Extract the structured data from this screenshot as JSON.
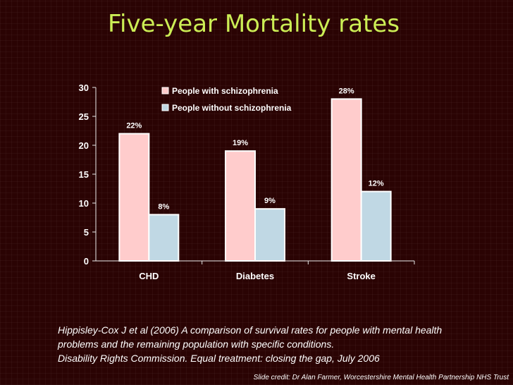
{
  "slide": {
    "title": "Five-year Mortality rates",
    "citations": [
      "Hippisley-Cox J et al (2006) A comparison of survival rates for people with mental health",
      "problems and the remaining population with specific conditions.",
      "Disability Rights Commission. Equal treatment: closing the gap, July 2006"
    ],
    "credit": "Slide credit: Dr Alan Farmer, Worcestershire Mental Health Partnership NHS Trust"
  },
  "chart_data": {
    "type": "bar",
    "title": "",
    "xlabel": "",
    "ylabel": "",
    "categories": [
      "CHD",
      "Diabetes",
      "Stroke"
    ],
    "ylim": [
      0,
      30
    ],
    "yticks": [
      0,
      5,
      10,
      15,
      20,
      25,
      30
    ],
    "grid": false,
    "legend_position": "top-center",
    "series": [
      {
        "name": "People with schizophrenia",
        "values": [
          22,
          19,
          28
        ],
        "labels": [
          "22%",
          "19%",
          "28%"
        ],
        "color": "#ffcccc"
      },
      {
        "name": "People without schizophrenia",
        "values": [
          8,
          9,
          12
        ],
        "labels": [
          "8%",
          "9%",
          "12%"
        ],
        "color": "#c0d8e4"
      }
    ],
    "background": "#ffffff",
    "label_color": "#ffffff"
  }
}
